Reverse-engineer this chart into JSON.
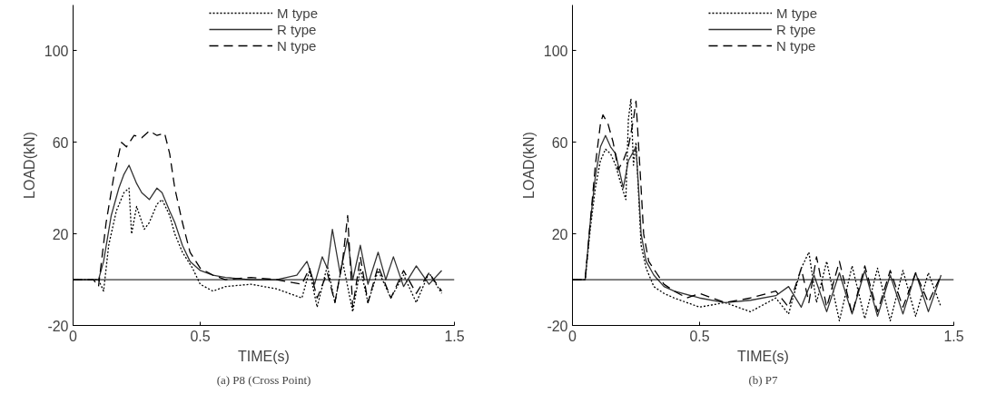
{
  "chart_data": [
    {
      "type": "line",
      "xlabel": "TIME(s)",
      "ylabel": "LOAD(kN)",
      "xlim": [
        0,
        1.5
      ],
      "ylim": [
        -20,
        120
      ],
      "xticks": [
        0,
        0.5,
        1.5
      ],
      "yticks": [
        -20,
        20,
        60,
        100
      ],
      "grid": false,
      "legend": "top",
      "annotations": [
        "(a) P8 (Cross Point)"
      ],
      "ref_lines": [
        {
          "axis": "y",
          "value": 0,
          "color": "#000000"
        }
      ],
      "series": [
        {
          "name": "M type",
          "color": "#000000",
          "line_style": "dotted",
          "x": [
            0,
            0.1,
            0.12,
            0.14,
            0.17,
            0.2,
            0.22,
            0.23,
            0.25,
            0.28,
            0.3,
            0.33,
            0.35,
            0.38,
            0.4,
            0.43,
            0.47,
            0.5,
            0.55,
            0.6,
            0.7,
            0.8,
            0.9,
            0.93,
            0.96,
            1.0,
            1.03,
            1.06,
            1.1,
            1.13,
            1.16,
            1.2,
            1.25,
            1.3,
            1.35,
            1.4,
            1.45
          ],
          "values": [
            0,
            0,
            -5,
            15,
            30,
            38,
            40,
            20,
            32,
            22,
            25,
            33,
            35,
            28,
            20,
            12,
            5,
            -2,
            -5,
            -3,
            -2,
            -4,
            -8,
            4,
            -12,
            6,
            -10,
            8,
            -14,
            5,
            -10,
            4,
            -8,
            2,
            -10,
            3,
            -6
          ]
        },
        {
          "name": "R type",
          "color": "#333333",
          "line_style": "solid",
          "x": [
            0,
            0.1,
            0.12,
            0.15,
            0.18,
            0.2,
            0.22,
            0.25,
            0.27,
            0.3,
            0.33,
            0.35,
            0.38,
            0.4,
            0.43,
            0.46,
            0.5,
            0.55,
            0.6,
            0.7,
            0.8,
            0.88,
            0.92,
            0.95,
            0.98,
            1.0,
            1.02,
            1.05,
            1.08,
            1.1,
            1.13,
            1.16,
            1.2,
            1.23,
            1.26,
            1.3,
            1.35,
            1.4,
            1.45
          ],
          "values": [
            0,
            0,
            8,
            28,
            40,
            46,
            50,
            42,
            38,
            35,
            40,
            38,
            30,
            25,
            15,
            8,
            4,
            2,
            1,
            0,
            0,
            2,
            8,
            -2,
            10,
            5,
            22,
            3,
            18,
            0,
            15,
            -2,
            12,
            0,
            10,
            -3,
            6,
            -2,
            4
          ]
        },
        {
          "name": "N type",
          "color": "#000000",
          "line_style": "dashed",
          "x": [
            0,
            0.08,
            0.1,
            0.13,
            0.16,
            0.19,
            0.21,
            0.24,
            0.27,
            0.3,
            0.33,
            0.36,
            0.38,
            0.4,
            0.43,
            0.46,
            0.5,
            0.55,
            0.6,
            0.7,
            0.8,
            0.9,
            0.93,
            0.96,
            1.0,
            1.03,
            1.06,
            1.08,
            1.1,
            1.13,
            1.16,
            1.2,
            1.25,
            1.3,
            1.35,
            1.4,
            1.45
          ],
          "values": [
            0,
            0,
            -3,
            25,
            45,
            60,
            58,
            63,
            62,
            65,
            63,
            64,
            55,
            40,
            25,
            12,
            5,
            2,
            0,
            1,
            0,
            -2,
            5,
            -8,
            3,
            -10,
            8,
            28,
            -12,
            10,
            -10,
            6,
            -8,
            4,
            -6,
            3,
            -5
          ]
        }
      ]
    },
    {
      "type": "line",
      "xlabel": "TIME(s)",
      "ylabel": "LOAD(kN)",
      "xlim": [
        0,
        1.5
      ],
      "ylim": [
        -20,
        120
      ],
      "xticks": [
        0,
        0.5,
        1.5
      ],
      "yticks": [
        -20,
        20,
        60,
        100
      ],
      "grid": false,
      "legend": "top",
      "annotations": [
        "(b) P7"
      ],
      "ref_lines": [
        {
          "axis": "y",
          "value": 0,
          "color": "#000000"
        }
      ],
      "series": [
        {
          "name": "M type",
          "color": "#000000",
          "line_style": "dotted",
          "x": [
            0,
            0.05,
            0.07,
            0.09,
            0.11,
            0.13,
            0.15,
            0.17,
            0.19,
            0.21,
            0.22,
            0.23,
            0.24,
            0.25,
            0.27,
            0.29,
            0.32,
            0.36,
            0.4,
            0.5,
            0.6,
            0.7,
            0.8,
            0.85,
            0.9,
            0.93,
            0.96,
            1.0,
            1.05,
            1.1,
            1.15,
            1.2,
            1.25,
            1.3,
            1.35,
            1.4,
            1.45
          ],
          "values": [
            0,
            0,
            22,
            40,
            52,
            57,
            55,
            50,
            42,
            35,
            70,
            79,
            50,
            60,
            15,
            5,
            -3,
            -6,
            -8,
            -12,
            -10,
            -14,
            -8,
            -15,
            5,
            12,
            -10,
            8,
            -18,
            6,
            -17,
            5,
            -18,
            4,
            -16,
            3,
            -12
          ]
        },
        {
          "name": "R type",
          "color": "#333333",
          "line_style": "solid",
          "x": [
            0,
            0.05,
            0.07,
            0.09,
            0.11,
            0.13,
            0.15,
            0.17,
            0.19,
            0.2,
            0.22,
            0.24,
            0.25,
            0.26,
            0.27,
            0.29,
            0.32,
            0.36,
            0.4,
            0.5,
            0.6,
            0.7,
            0.8,
            0.85,
            0.9,
            0.95,
            1.0,
            1.05,
            1.1,
            1.15,
            1.2,
            1.25,
            1.3,
            1.35,
            1.4,
            1.45
          ],
          "values": [
            0,
            0,
            25,
            45,
            58,
            63,
            58,
            55,
            45,
            40,
            52,
            56,
            58,
            40,
            20,
            8,
            2,
            -3,
            -5,
            -8,
            -10,
            -9,
            -7,
            -3,
            -12,
            2,
            -14,
            3,
            -15,
            4,
            -16,
            2,
            -15,
            3,
            -14,
            2
          ]
        },
        {
          "name": "N type",
          "color": "#000000",
          "line_style": "dashed",
          "x": [
            0,
            0.05,
            0.07,
            0.09,
            0.11,
            0.12,
            0.14,
            0.16,
            0.18,
            0.2,
            0.22,
            0.24,
            0.25,
            0.27,
            0.28,
            0.3,
            0.33,
            0.36,
            0.4,
            0.45,
            0.5,
            0.6,
            0.7,
            0.8,
            0.85,
            0.9,
            0.93,
            0.96,
            1.0,
            1.05,
            1.1,
            1.15,
            1.2,
            1.25,
            1.3,
            1.35,
            1.4,
            1.45
          ],
          "values": [
            0,
            0,
            25,
            50,
            68,
            72,
            68,
            60,
            48,
            52,
            58,
            70,
            78,
            40,
            20,
            8,
            3,
            -2,
            -5,
            -8,
            -6,
            -10,
            -8,
            -5,
            -12,
            5,
            -10,
            10,
            -12,
            8,
            -15,
            6,
            -14,
            4,
            -12,
            3,
            -10,
            2
          ]
        }
      ]
    }
  ]
}
